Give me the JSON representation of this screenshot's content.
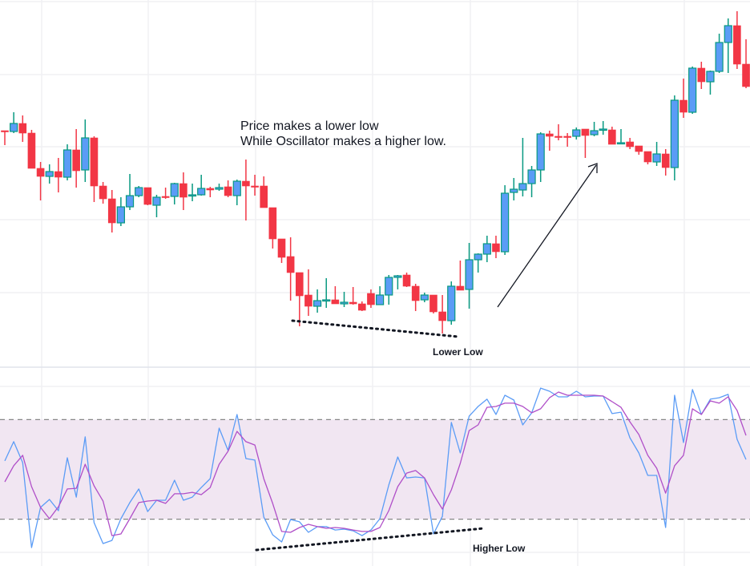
{
  "annotations": {
    "line1": "Price makes a lower low",
    "line2": "While Oscillator makes a higher low.",
    "lower_low": "Lower Low",
    "higher_low": "Higher Low"
  },
  "colors": {
    "up_body": "#5B9CF6",
    "up_border": "#089981",
    "down": "#F23645",
    "fast_line": "#5B9CF6",
    "slow_line": "#B04FC8",
    "band_fill": "#F1E6F2",
    "grid": "#F0F0F3"
  },
  "chart_data": [
    {
      "type": "candlestick",
      "title": "",
      "xlabel": "",
      "ylabel": "",
      "grid": true,
      "ohlc_order": [
        "open",
        "high",
        "low",
        "close"
      ],
      "ohlc": [
        [
          337,
          337,
          319,
          336
        ],
        [
          336,
          360,
          334,
          346
        ],
        [
          346,
          356,
          323,
          334
        ],
        [
          334,
          338,
          290,
          290
        ],
        [
          290,
          298,
          250,
          280
        ],
        [
          280,
          295,
          271,
          286
        ],
        [
          286,
          303,
          260,
          279
        ],
        [
          279,
          320,
          275,
          313
        ],
        [
          313,
          339,
          266,
          287
        ],
        [
          288,
          351,
          273,
          328
        ],
        [
          328,
          330,
          248,
          268
        ],
        [
          268,
          273,
          246,
          252
        ],
        [
          252,
          263,
          210,
          222
        ],
        [
          222,
          254,
          218,
          242
        ],
        [
          242,
          283,
          238,
          256
        ],
        [
          256,
          268,
          254,
          266
        ],
        [
          266,
          266,
          244,
          245
        ],
        [
          244,
          257,
          229,
          254
        ],
        [
          255,
          266,
          252,
          254
        ],
        [
          255,
          272,
          245,
          271
        ],
        [
          271,
          285,
          238,
          254
        ],
        [
          256,
          271,
          249,
          257
        ],
        [
          257,
          282,
          256,
          265
        ],
        [
          265,
          267,
          254,
          263
        ],
        [
          264,
          271,
          262,
          266
        ],
        [
          267,
          275,
          254,
          256
        ],
        [
          256,
          276,
          244,
          274
        ],
        [
          274,
          301,
          225,
          268
        ],
        [
          268,
          282,
          256,
          267
        ],
        [
          268,
          280,
          241,
          241
        ],
        [
          241,
          241,
          190,
          202
        ],
        [
          202,
          202,
          172,
          179
        ],
        [
          180,
          204,
          125,
          160
        ],
        [
          160,
          160,
          93,
          131
        ],
        [
          132,
          164,
          106,
          118
        ],
        [
          118,
          139,
          110,
          125
        ],
        [
          125,
          153,
          116,
          126
        ],
        [
          126,
          143,
          121,
          121
        ],
        [
          121,
          136,
          117,
          123
        ],
        [
          123,
          142,
          120,
          121
        ],
        [
          121,
          124,
          112,
          113
        ],
        [
          134,
          139,
          116,
          120
        ],
        [
          120,
          143,
          120,
          132
        ],
        [
          132,
          157,
          120,
          154
        ],
        [
          154,
          157,
          139,
          156
        ],
        [
          157,
          160,
          142,
          143
        ],
        [
          143,
          146,
          112,
          125
        ],
        [
          126,
          135,
          123,
          132
        ],
        [
          132,
          132,
          109,
          111
        ],
        [
          111,
          132,
          84,
          100
        ],
        [
          100,
          149,
          95,
          143
        ],
        [
          143,
          175,
          138,
          138
        ],
        [
          139,
          197,
          115,
          176
        ],
        [
          176,
          184,
          160,
          183
        ],
        [
          183,
          206,
          173,
          196
        ],
        [
          196,
          206,
          178,
          186
        ],
        [
          186,
          269,
          182,
          259
        ],
        [
          260,
          278,
          250,
          264
        ],
        [
          263,
          328,
          255,
          271
        ],
        [
          271,
          293,
          254,
          288
        ],
        [
          288,
          335,
          273,
          333
        ],
        [
          333,
          337,
          312,
          330
        ],
        [
          330,
          345,
          325,
          329
        ],
        [
          330,
          334,
          317,
          329
        ],
        [
          330,
          341,
          326,
          338
        ],
        [
          339,
          339,
          303,
          331
        ],
        [
          332,
          348,
          330,
          337
        ],
        [
          338,
          349,
          332,
          339
        ],
        [
          338,
          342,
          320,
          320
        ],
        [
          321,
          339,
          320,
          322
        ],
        [
          323,
          328,
          314,
          317
        ],
        [
          318,
          318,
          307,
          311
        ],
        [
          311,
          311,
          295,
          298
        ],
        [
          298,
          323,
          293,
          308
        ],
        [
          308,
          314,
          281,
          291
        ],
        [
          291,
          381,
          275,
          375
        ],
        [
          375,
          402,
          353,
          360
        ],
        [
          360,
          417,
          358,
          415
        ],
        [
          415,
          423,
          389,
          398
        ],
        [
          398,
          412,
          382,
          411
        ],
        [
          411,
          458,
          409,
          447
        ],
        [
          447,
          477,
          409,
          468
        ],
        [
          468,
          486,
          414,
          420
        ],
        [
          420,
          451,
          390,
          392
        ]
      ]
    },
    {
      "type": "line",
      "title": "",
      "xlabel": "",
      "ylabel": "",
      "ylim": [
        0,
        100
      ],
      "bands": [
        20,
        80
      ],
      "grid": true,
      "series": [
        {
          "values": [
            55.1,
            66.7,
            54.1,
            2.9,
            27.1,
            31.9,
            25.1,
            57.0,
            33.3,
            69.6,
            17.9,
            5.3,
            7.2,
            20.3,
            30.0,
            38.2,
            24.6,
            31.4,
            31.4,
            43.5,
            31.4,
            33.3,
            39.1,
            44.4,
            74.9,
            61.4,
            83.1,
            56.5,
            55.6,
            21.3,
            10.6,
            6.3,
            19.8,
            18.4,
            12.1,
            15.5,
            15.5,
            13.5,
            14.0,
            13.0,
            10.1,
            13.5,
            20.3,
            40.6,
            57.5,
            44.9,
            45.4,
            44.9,
            11.1,
            21.7,
            78.3,
            59.9,
            82.1,
            87.9,
            92.3,
            83.1,
            94.7,
            91.8,
            76.8,
            84.1,
            99.0,
            97.1,
            93.7,
            93.7,
            97.1,
            93.7,
            94.2,
            94.2,
            83.6,
            84.5,
            69.1,
            59.9,
            46.4,
            46.4,
            15.0,
            94.7,
            66.2,
            98.1,
            83.1,
            92.3,
            93.2,
            95.2,
            68.1,
            56.0
          ]
        },
        {
          "values": [
            42.5,
            52.2,
            58.5,
            39.6,
            27.1,
            20.3,
            27.5,
            38.2,
            38.6,
            53.1,
            40.1,
            30.9,
            10.1,
            11.1,
            20.3,
            30.0,
            30.9,
            31.4,
            29.5,
            35.3,
            35.3,
            36.2,
            34.8,
            39.1,
            53.1,
            60.9,
            72.9,
            66.7,
            64.7,
            44.4,
            29.5,
            12.6,
            12.1,
            15.0,
            16.9,
            15.5,
            14.5,
            15.0,
            14.5,
            13.5,
            12.6,
            12.6,
            15.0,
            25.1,
            39.6,
            47.8,
            49.3,
            44.9,
            34.8,
            26.1,
            37.7,
            53.6,
            73.4,
            76.8,
            87.4,
            87.9,
            89.9,
            89.9,
            87.9,
            84.1,
            86.5,
            93.2,
            96.6,
            94.7,
            94.7,
            94.7,
            94.7,
            94.2,
            90.8,
            87.4,
            78.7,
            71.0,
            58.5,
            50.7,
            35.7,
            52.2,
            58.5,
            86.5,
            83.1,
            91.3,
            89.9,
            93.7,
            85.5,
            70.5
          ]
        }
      ]
    }
  ]
}
